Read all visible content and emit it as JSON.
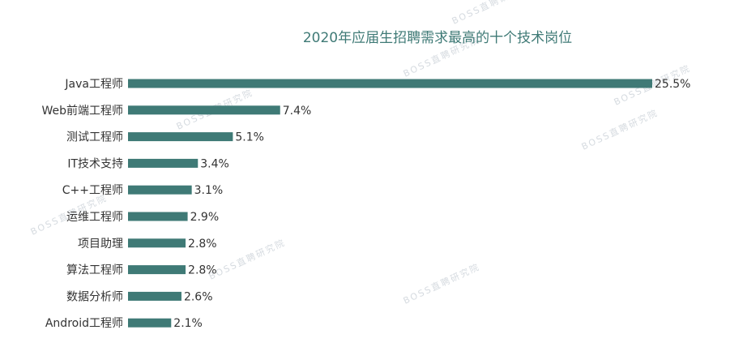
{
  "chart_data": {
    "type": "bar",
    "orientation": "horizontal",
    "title": "2020年应届生招聘需求最高的十个技术岗位",
    "categories": [
      "Java工程师",
      "Web前端工程师",
      "测试工程师",
      "IT技术支持",
      "C++工程师",
      "运维工程师",
      "项目助理",
      "算法工程师",
      "数据分析师",
      "Android工程师"
    ],
    "values": [
      25.5,
      7.4,
      5.1,
      3.4,
      3.1,
      2.9,
      2.8,
      2.8,
      2.6,
      2.1
    ],
    "value_labels": [
      "25.5%",
      "7.4%",
      "5.1%",
      "3.4%",
      "3.1%",
      "2.9%",
      "2.8%",
      "2.8%",
      "2.6%",
      "2.1%"
    ],
    "xlim": [
      0,
      25.5
    ],
    "grid": false,
    "legend": "none",
    "bar_color": "#3f7a76",
    "title_color": "#3f7a76"
  },
  "watermark": {
    "text": "BOSS直聘研究院"
  }
}
